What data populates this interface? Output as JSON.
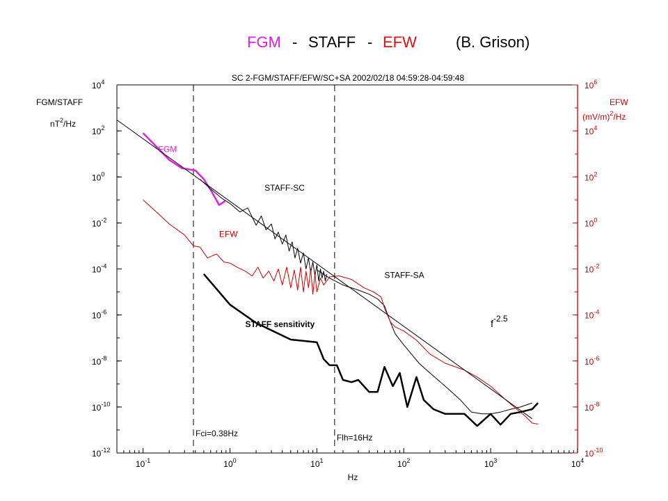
{
  "heading": {
    "parts": [
      {
        "text": "FGM",
        "color": "#e020e0"
      },
      {
        "text": "-",
        "color": "#000000"
      },
      {
        "text": "STAFF",
        "color": "#000000"
      },
      {
        "text": "-",
        "color": "#000000"
      },
      {
        "text": "EFW",
        "color": "#dd1111"
      },
      {
        "text": "(B. Grison)",
        "color": "#000000"
      }
    ]
  },
  "chart_data": {
    "type": "line",
    "title": "SC 2-FGM/STAFF/EFW/SC+SA  2002/02/18 04:59:28-04:59:48",
    "xlabel": "Hz",
    "x_scale": "log",
    "xlim": [
      0.05,
      10000
    ],
    "x_ticks": [
      {
        "value": 0.1,
        "base": "10",
        "exp": "-1"
      },
      {
        "value": 1,
        "base": "10",
        "exp": "0"
      },
      {
        "value": 10,
        "base": "10",
        "exp": "1"
      },
      {
        "value": 100,
        "base": "10",
        "exp": "2"
      },
      {
        "value": 1000,
        "base": "10",
        "exp": "3"
      },
      {
        "value": 10000,
        "base": "10",
        "exp": "4"
      }
    ],
    "y_left": {
      "label_line1": "FGM/STAFF",
      "label_line2_base": "nT",
      "label_line2_exp": "2",
      "label_line2_tail": "/Hz",
      "scale": "log",
      "lim": [
        1e-12,
        10000.0
      ],
      "ticks": [
        {
          "value": 10000.0,
          "base": "10",
          "exp": "4"
        },
        {
          "value": 100.0,
          "base": "10",
          "exp": "2"
        },
        {
          "value": 1,
          "base": "10",
          "exp": "0"
        },
        {
          "value": 0.01,
          "base": "10",
          "exp": "-2"
        },
        {
          "value": 0.0001,
          "base": "10",
          "exp": "-4"
        },
        {
          "value": 1e-06,
          "base": "10",
          "exp": "-6"
        },
        {
          "value": 1e-08,
          "base": "10",
          "exp": "-8"
        },
        {
          "value": 1e-10,
          "base": "10",
          "exp": "-10"
        },
        {
          "value": 1e-12,
          "base": "10",
          "exp": "-12"
        }
      ]
    },
    "y_right": {
      "label_line1": "EFW",
      "label_line2_base": "(mV/m)",
      "label_line2_exp": "2",
      "label_line2_tail": "/Hz",
      "scale": "log",
      "lim": [
        1e-10,
        1000000.0
      ],
      "color": "#cc0000",
      "ticks": [
        {
          "value": 1000000.0,
          "base": "10",
          "exp": "6"
        },
        {
          "value": 10000.0,
          "base": "10",
          "exp": "4"
        },
        {
          "value": 100.0,
          "base": "10",
          "exp": "2"
        },
        {
          "value": 1,
          "base": "10",
          "exp": "0"
        },
        {
          "value": 0.01,
          "base": "10",
          "exp": "-2"
        },
        {
          "value": 0.0001,
          "base": "10",
          "exp": "-4"
        },
        {
          "value": 1e-06,
          "base": "10",
          "exp": "-6"
        },
        {
          "value": 1e-08,
          "base": "10",
          "exp": "-8"
        },
        {
          "value": 1e-10,
          "base": "10",
          "exp": "-10"
        }
      ]
    },
    "vertical_markers": [
      {
        "x": 0.38,
        "label": "Fci=0.38Hz"
      },
      {
        "x": 16,
        "label": "Flh=16Hz"
      }
    ],
    "annotations": [
      {
        "text": "FGM",
        "x": 0.15,
        "y": 12,
        "axis": "left",
        "color": "#e020e0"
      },
      {
        "text": "STAFF-SC",
        "x": 2.5,
        "y": 0.25,
        "axis": "left",
        "color": "#000000"
      },
      {
        "text": "EFW",
        "x": 0.75,
        "y": 0.0025,
        "axis": "left",
        "color": "#cc0000"
      },
      {
        "text": "STAFF-SA",
        "x": 60,
        "y": 4e-05,
        "axis": "left",
        "color": "#000000"
      },
      {
        "text": "STAFF sensitivity",
        "x": 1.5,
        "y": 3e-07,
        "axis": "left",
        "color": "#000000",
        "bold": true
      },
      {
        "text": "f",
        "sup": "-2.5",
        "x": 1000,
        "y": 3e-07,
        "axis": "left",
        "color": "#000000"
      }
    ],
    "series": [
      {
        "id": "FGM",
        "axis": "left",
        "color": "#e020e0",
        "width": 2.5,
        "x": [
          0.1,
          0.14,
          0.2,
          0.28,
          0.4,
          0.5,
          0.62,
          0.75,
          0.88
        ],
        "y": [
          80,
          22,
          5.5,
          2.4,
          1.9,
          0.8,
          0.22,
          0.06,
          0.09
        ]
      },
      {
        "id": "STAFF-SC",
        "axis": "left",
        "color": "#000000",
        "width": 1,
        "x": [
          0.45,
          0.6,
          0.8,
          1.0,
          1.3,
          1.6,
          2.0,
          2.3,
          2.6,
          3.0,
          3.3,
          3.6,
          4.0,
          4.4,
          4.8,
          5.2,
          5.6,
          6.0,
          6.5,
          7.0,
          7.5,
          8.0,
          8.5,
          9.0,
          9.5,
          10.0,
          10.5,
          11.0,
          11.5,
          12.0,
          12.5,
          13.0
        ],
        "y": [
          0.8,
          0.3,
          0.12,
          0.07,
          0.03,
          0.045,
          0.008,
          0.02,
          0.005,
          0.009,
          0.002,
          0.004,
          0.0012,
          0.003,
          0.0006,
          0.0015,
          0.0003,
          0.0008,
          0.00018,
          0.0005,
          0.0001,
          0.0003,
          7e-05,
          0.0002,
          5e-05,
          0.00015,
          3e-05,
          0.0001,
          4e-05,
          8e-05,
          3e-05,
          6e-05
        ]
      },
      {
        "id": "STAFF-SA",
        "axis": "left",
        "color": "#000000",
        "width": 1,
        "x": [
          10,
          14,
          20,
          30,
          40,
          50,
          60,
          70,
          80,
          100,
          150,
          200,
          300,
          450,
          600,
          800,
          1000,
          1300,
          1700,
          2200,
          3000
        ],
        "y": [
          9e-05,
          4e-05,
          2e-05,
          1.2e-05,
          8e-06,
          5e-06,
          2.5e-06,
          5e-07,
          1.5e-07,
          5e-08,
          8e-09,
          3e-09,
          8e-10,
          2e-10,
          6e-11,
          5e-11,
          5e-11,
          6e-11,
          8e-11,
          1e-10,
          1.5e-10
        ]
      },
      {
        "id": "EFW",
        "axis": "right",
        "color": "#cc0000",
        "width": 1,
        "x": [
          0.1,
          0.15,
          0.2,
          0.3,
          0.38,
          0.45,
          0.55,
          0.7,
          0.85,
          1.0,
          1.2,
          1.5,
          1.8,
          2.1,
          2.4,
          2.8,
          3.2,
          3.6,
          4.0,
          4.5,
          5.0,
          5.5,
          6.0,
          6.5,
          7.0,
          7.5,
          8.0,
          8.5,
          9.0,
          9.5,
          10,
          11,
          12,
          14,
          18,
          25,
          35,
          45,
          55,
          60,
          70,
          80,
          100,
          140,
          200,
          300,
          500,
          700,
          1000,
          1500,
          2000,
          2500,
          3000,
          3500
        ],
        "y": [
          10,
          2.5,
          0.9,
          0.3,
          0.1,
          0.09,
          0.03,
          0.045,
          0.02,
          0.018,
          0.012,
          0.008,
          0.005,
          0.012,
          0.004,
          0.008,
          0.003,
          0.01,
          0.002,
          0.012,
          0.0015,
          0.009,
          0.0012,
          0.012,
          0.001,
          0.008,
          0.0015,
          0.01,
          0.0008,
          0.006,
          0.001,
          0.004,
          0.002,
          0.0045,
          0.005,
          0.0035,
          0.0015,
          0.001,
          0.0006,
          0.0002,
          5e-05,
          3e-05,
          2e-05,
          8e-06,
          2e-06,
          8e-07,
          4e-07,
          2e-07,
          8e-08,
          2e-08,
          8e-09,
          4e-09,
          2e-09,
          1.8e-09
        ]
      },
      {
        "id": "STAFF sensitivity",
        "axis": "left",
        "color": "#000000",
        "width": 2.5,
        "x": [
          0.5,
          1.0,
          2.0,
          5.0,
          10,
          12,
          14,
          17,
          20,
          25,
          30,
          40,
          50,
          60,
          75,
          90,
          110,
          140,
          170,
          220,
          300,
          500,
          700,
          1000,
          1300,
          1700,
          2200,
          3000,
          3500
        ],
        "y": [
          6e-05,
          2.8e-06,
          4.5e-07,
          8.5e-08,
          6.5e-08,
          1.2e-08,
          6.5e-09,
          6.5e-09,
          1.5e-09,
          1.2e-09,
          1.5e-09,
          4.5e-10,
          4.5e-10,
          5.5e-09,
          8e-10,
          3e-09,
          1e-10,
          2e-09,
          2e-10,
          8e-11,
          5e-11,
          5e-11,
          1.5e-11,
          5e-11,
          1.7e-11,
          5e-11,
          6e-11,
          8e-11,
          1.5e-10
        ]
      },
      {
        "id": "f^-2.5",
        "axis": "left",
        "color": "#000000",
        "width": 1,
        "x": [
          0.05,
          3000
        ],
        "y": [
          300,
          3.1e-11
        ]
      }
    ]
  }
}
